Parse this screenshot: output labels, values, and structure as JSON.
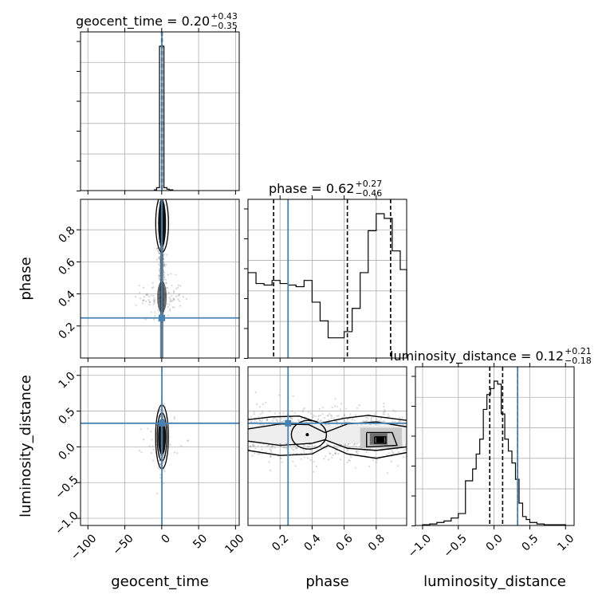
{
  "chart_data": {
    "type": "corner",
    "parameters": [
      "geocent_time",
      "phase",
      "luminosity_distance"
    ],
    "colors": {
      "truth": "#4682b4",
      "hist": "#000000",
      "grid": "#b0b0b0",
      "contour": "#000000",
      "scatter": "#8c8c8c"
    },
    "titles": [
      {
        "parameter": "geocent_time",
        "label": "geocent_time = 0.20",
        "plus": "+0.43",
        "minus": "−0.35"
      },
      {
        "parameter": "phase",
        "label": "phase = 0.62",
        "plus": "+0.27",
        "minus": "−0.46"
      },
      {
        "parameter": "luminosity_distance",
        "label": "luminosity_distance = 0.12",
        "plus": "+0.21",
        "minus": "−0.18"
      }
    ],
    "axes": {
      "geocent_time": {
        "range": [
          -110,
          105
        ],
        "ticks": [
          -100,
          -50,
          0,
          50,
          100
        ],
        "tick_labels": [
          "−100",
          "−50",
          "0",
          "50",
          "100"
        ]
      },
      "phase": {
        "range": [
          0.0,
          0.99
        ],
        "ticks": [
          0.2,
          0.4,
          0.6,
          0.8
        ],
        "tick_labels": [
          "0.2",
          "0.4",
          "0.6",
          "0.8"
        ]
      },
      "luminosity_distance": {
        "range": [
          -1.1,
          1.12
        ],
        "ticks": [
          -1.0,
          -0.5,
          0.0,
          0.5,
          1.0
        ],
        "tick_labels": [
          "−1.0",
          "−0.5",
          "0.0",
          "0.5",
          "1.0"
        ]
      }
    },
    "truths": {
      "geocent_time": 0.2,
      "phase": 0.25,
      "luminosity_distance": 0.33
    },
    "quantiles": {
      "geocent_time": [
        -0.15,
        0.2,
        0.63
      ],
      "phase": [
        0.16,
        0.62,
        0.89
      ],
      "luminosity_distance": [
        -0.06,
        0.12,
        0.33
      ]
    },
    "histograms": {
      "geocent_time": {
        "edges": [
          -10,
          -7,
          -3,
          3,
          7,
          10,
          15
        ],
        "counts": [
          0.005,
          0.02,
          1.0,
          0.02,
          0.01,
          0.005
        ]
      },
      "phase": {
        "edges": [
          0.0,
          0.05,
          0.1,
          0.15,
          0.2,
          0.25,
          0.3,
          0.35,
          0.4,
          0.45,
          0.5,
          0.55,
          0.6,
          0.65,
          0.7,
          0.75,
          0.8,
          0.85,
          0.9,
          0.95,
          0.99
        ],
        "counts": [
          0.55,
          0.48,
          0.47,
          0.5,
          0.48,
          0.47,
          0.46,
          0.5,
          0.36,
          0.24,
          0.13,
          0.13,
          0.17,
          0.32,
          0.55,
          0.82,
          0.93,
          0.9,
          0.69,
          0.57
        ]
      },
      "luminosity_distance": {
        "edges": [
          -1.0,
          -0.9,
          -0.8,
          -0.7,
          -0.6,
          -0.5,
          -0.4,
          -0.3,
          -0.25,
          -0.2,
          -0.15,
          -0.1,
          -0.05,
          0.0,
          0.05,
          0.1,
          0.15,
          0.2,
          0.25,
          0.3,
          0.35,
          0.4,
          0.45,
          0.5,
          0.6,
          0.7,
          0.8,
          0.9,
          1.0
        ],
        "counts": [
          0.005,
          0.01,
          0.02,
          0.03,
          0.05,
          0.08,
          0.3,
          0.38,
          0.48,
          0.58,
          0.78,
          0.88,
          0.92,
          0.97,
          0.95,
          0.75,
          0.58,
          0.5,
          0.42,
          0.31,
          0.15,
          0.06,
          0.04,
          0.02,
          0.01,
          0.005,
          0.005,
          0.005
        ]
      }
    }
  }
}
